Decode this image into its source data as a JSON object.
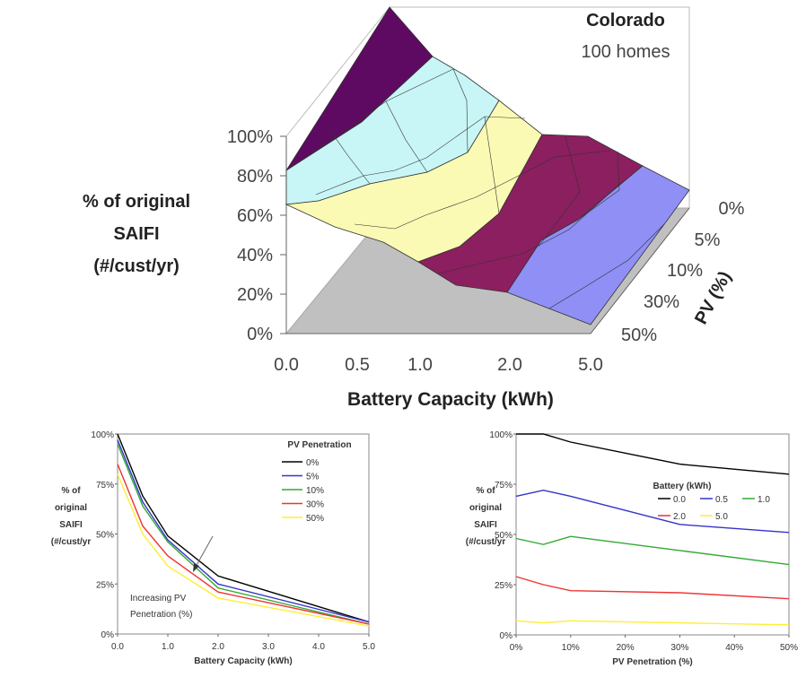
{
  "chart_data": [
    {
      "type": "surface",
      "title": "Colorado",
      "subtitle": "100 homes",
      "xlabel": "Battery Capacity (kWh)",
      "ylabel_lines": [
        "% of original",
        "SAIFI",
        "(#/cust/yr)"
      ],
      "zlabel": "PV (%)",
      "x_categories": [
        "0.0",
        "0.5",
        "1.0",
        "2.0",
        "5.0"
      ],
      "pv_categories": [
        "0%",
        "5%",
        "10%",
        "30%",
        "50%"
      ],
      "y_ticks": [
        "0%",
        "20%",
        "40%",
        "60%",
        "80%",
        "100%"
      ],
      "ylim": [
        0,
        100
      ],
      "band_colors": [
        "#5e0a62",
        "#c8f5f5",
        "#fafab4",
        "#8c1f5f",
        "#8f8ff5"
      ],
      "floor_color": "#c0c0c0"
    },
    {
      "type": "line",
      "xlabel": "Battery Capacity (kWh)",
      "ylabel_lines": [
        "% of",
        "original",
        "SAIFI",
        "(#/cust/yr"
      ],
      "legend_title": "PV Penetration",
      "legend_position": "top-right",
      "x": [
        0,
        0.5,
        1,
        2,
        5
      ],
      "x_ticks": [
        "0.0",
        "1.0",
        "2.0",
        "3.0",
        "4.0",
        "5.0"
      ],
      "y_ticks": [
        "0%",
        "25%",
        "50%",
        "75%",
        "100%"
      ],
      "xlim": [
        0,
        5
      ],
      "ylim": [
        0,
        100
      ],
      "annotation": [
        "Increasing PV",
        "Penetration (%)"
      ],
      "series": [
        {
          "name": "0%",
          "color": "#000000",
          "values": [
            100,
            69,
            49,
            29,
            6
          ]
        },
        {
          "name": "5%",
          "color": "#3333cc",
          "values": [
            97,
            66,
            47,
            25,
            6
          ]
        },
        {
          "name": "10%",
          "color": "#33aa33",
          "values": [
            95,
            64,
            46,
            23,
            5
          ]
        },
        {
          "name": "30%",
          "color": "#ee3333",
          "values": [
            85,
            54,
            39,
            21,
            5
          ]
        },
        {
          "name": "50%",
          "color": "#ffee33",
          "values": [
            80,
            50,
            34,
            18,
            4
          ]
        }
      ]
    },
    {
      "type": "line",
      "xlabel": "PV Penetration (%)",
      "ylabel_lines": [
        "% of",
        "original",
        "SAIFI",
        "(#/cust/yr"
      ],
      "legend_title": "Battery (kWh)",
      "legend_position": "top-right",
      "x": [
        0,
        5,
        10,
        30,
        50
      ],
      "x_ticks": [
        "0%",
        "10%",
        "20%",
        "30%",
        "40%",
        "50%"
      ],
      "y_ticks": [
        "0%",
        "25%",
        "50%",
        "75%",
        "100%"
      ],
      "xlim": [
        0,
        50
      ],
      "ylim": [
        0,
        100
      ],
      "series": [
        {
          "name": "0.0",
          "color": "#000000",
          "values": [
            100,
            100,
            96,
            85,
            80
          ]
        },
        {
          "name": "0.5",
          "color": "#3333cc",
          "values": [
            69,
            72,
            69,
            55,
            51
          ]
        },
        {
          "name": "1.0",
          "color": "#33aa33",
          "values": [
            48,
            45,
            49,
            42,
            35
          ]
        },
        {
          "name": "2.0",
          "color": "#ee3333",
          "values": [
            29,
            25,
            22,
            21,
            18
          ]
        },
        {
          "name": "5.0",
          "color": "#ffee33",
          "values": [
            7,
            6,
            7,
            6,
            5
          ]
        }
      ]
    }
  ]
}
